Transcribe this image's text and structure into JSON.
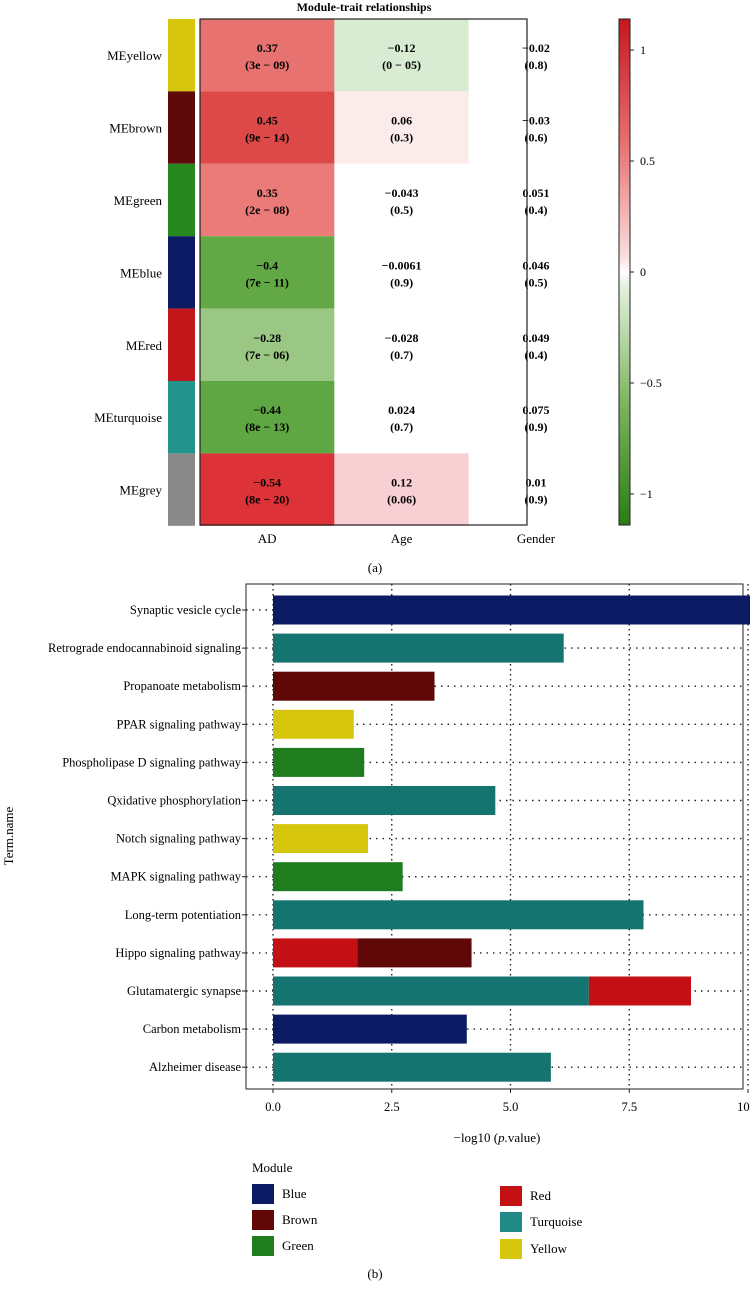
{
  "chart_data": [
    {
      "type": "heatmap",
      "panel_label": "(a)",
      "title": "Module-trait relationships",
      "rows": [
        "MEyellow",
        "MEbrown",
        "MEgreen",
        "MEblue",
        "MEred",
        "MEturquoise",
        "MEgrey"
      ],
      "row_colors": [
        "#d6c70e",
        "#5e0a0a",
        "#25871d",
        "#0b1a63",
        "#c2161a",
        "#23938e",
        "#8a8a8a"
      ],
      "columns": [
        "AD",
        "Age",
        "Gender"
      ],
      "values": [
        [
          0.37,
          -0.12,
          -0.02
        ],
        [
          0.45,
          0.06,
          -0.03
        ],
        [
          0.35,
          -0.043,
          0.051
        ],
        [
          -0.4,
          -0.0061,
          0.046
        ],
        [
          -0.28,
          -0.028,
          0.049
        ],
        [
          -0.44,
          0.024,
          0.075
        ],
        [
          -0.54,
          0.12,
          0.01
        ]
      ],
      "value_labels": [
        [
          "0.37",
          "−0.12",
          "−0.02"
        ],
        [
          "0.45",
          "0.06",
          "−0.03"
        ],
        [
          "0.35",
          "−0.043",
          "0.051"
        ],
        [
          "−0.4",
          "−0.0061",
          "0.046"
        ],
        [
          "−0.28",
          "−0.028",
          "0.049"
        ],
        [
          "−0.44",
          "0.024",
          "0.075"
        ],
        [
          "−0.54",
          "0.12",
          "0.01"
        ]
      ],
      "pvalue_labels": [
        [
          "(3e − 09)",
          "(0 − 05)",
          "(0.8)"
        ],
        [
          "(9e − 14)",
          "(0.3)",
          "(0.6)"
        ],
        [
          "(2e − 08)",
          "(0.5)",
          "(0.4)"
        ],
        [
          "(7e − 11)",
          "(0.9)",
          "(0.5)"
        ],
        [
          "(7e − 06)",
          "(0.7)",
          "(0.4)"
        ],
        [
          "(8e − 13)",
          "(0.7)",
          "(0.9)"
        ],
        [
          "(8e − 20)",
          "(0.06)",
          "(0.9)"
        ]
      ],
      "cell_colors": [
        [
          "#e77270",
          "#d8ebd3",
          "#ffffff"
        ],
        [
          "#dd4848",
          "#fcebeb",
          "#ffffff"
        ],
        [
          "#ea7b79",
          "#ffffff",
          "#ffffff"
        ],
        [
          "#62a845",
          "#ffffff",
          "#ffffff"
        ],
        [
          "#9bc785",
          "#ffffff",
          "#ffffff"
        ],
        [
          "#5fa743",
          "#ffffff",
          "#ffffff"
        ],
        [
          "#dc3238",
          "#f8cfd3",
          "#ffffff"
        ]
      ],
      "colorbar": {
        "range": [
          -1,
          1
        ],
        "ticks": [
          1,
          0.5,
          0,
          -0.5,
          -1
        ],
        "tick_labels": [
          "1",
          "0.5",
          "0",
          "−0.5",
          "−1"
        ],
        "low_color": "#2a7d14",
        "mid_color": "#ffffff",
        "high_color": "#c4171f"
      }
    },
    {
      "type": "bar",
      "orientation": "horizontal",
      "stacked": true,
      "panel_label": "(b)",
      "title": "",
      "xlabel": "−log10 (p.value)",
      "xlabel_parts": [
        "−log10 (",
        "p.",
        "value)"
      ],
      "ylabel": "Term.name",
      "xlim": [
        -0.6,
        10.4
      ],
      "xticks": [
        0,
        2.5,
        5,
        7.5,
        10
      ],
      "xtick_labels": [
        "0.0",
        "2.5",
        "5.0",
        "7.5",
        "10.0"
      ],
      "grid": "dotted",
      "categories": [
        "Synaptic vesicle cycle",
        "Retrograde endocannabinoid signaling",
        "Propanoate metabolism",
        "PPAR signaling pathway",
        "Phospholipase D signaling pathway",
        "Qxidative phosphorylation",
        "Notch signaling pathway",
        "MAPK signaling pathway",
        "Long-term potentiation",
        "Hippo signaling pathway",
        "Glutamatergic synapse",
        "Carbon metabolism",
        "Alzheimer disease"
      ],
      "bars": [
        [
          {
            "module": "Blue",
            "value": 10.15
          }
        ],
        [
          {
            "module": "Turquoise",
            "value": 6.12
          }
        ],
        [
          {
            "module": "Brown",
            "value": 3.4
          }
        ],
        [
          {
            "module": "Yellow",
            "value": 1.7
          }
        ],
        [
          {
            "module": "Green",
            "value": 1.92
          }
        ],
        [
          {
            "module": "Turquoise",
            "value": 4.68
          }
        ],
        [
          {
            "module": "Yellow",
            "value": 2.0
          }
        ],
        [
          {
            "module": "Green",
            "value": 2.73
          }
        ],
        [
          {
            "module": "Turquoise",
            "value": 7.8
          }
        ],
        [
          {
            "module": "Red",
            "value": 1.78
          },
          {
            "module": "Brown",
            "value": 2.4
          }
        ],
        [
          {
            "module": "Turquoise",
            "value": 6.65
          },
          {
            "module": "Red",
            "value": 2.15
          }
        ],
        [
          {
            "module": "Blue",
            "value": 4.08
          }
        ],
        [
          {
            "module": "Turquoise",
            "value": 5.85
          }
        ]
      ],
      "legend": {
        "title": "Module",
        "placement": "bottom",
        "items": [
          {
            "name": "Blue",
            "color": "#0b1a63"
          },
          {
            "name": "Brown",
            "color": "#600708"
          },
          {
            "name": "Green",
            "color": "#1f7d1f"
          },
          {
            "name": "Red",
            "color": "#c41014"
          },
          {
            "name": "Turquoise",
            "color": "#1f8a86"
          },
          {
            "name": "Yellow",
            "color": "#d6c70e"
          }
        ]
      },
      "bar_colors": {
        "Blue": "#0b1a63",
        "Brown": "#600708",
        "Green": "#1f7d1f",
        "Red": "#c41014",
        "Turquoise": "#167470",
        "Yellow": "#d6c70e"
      }
    }
  ]
}
